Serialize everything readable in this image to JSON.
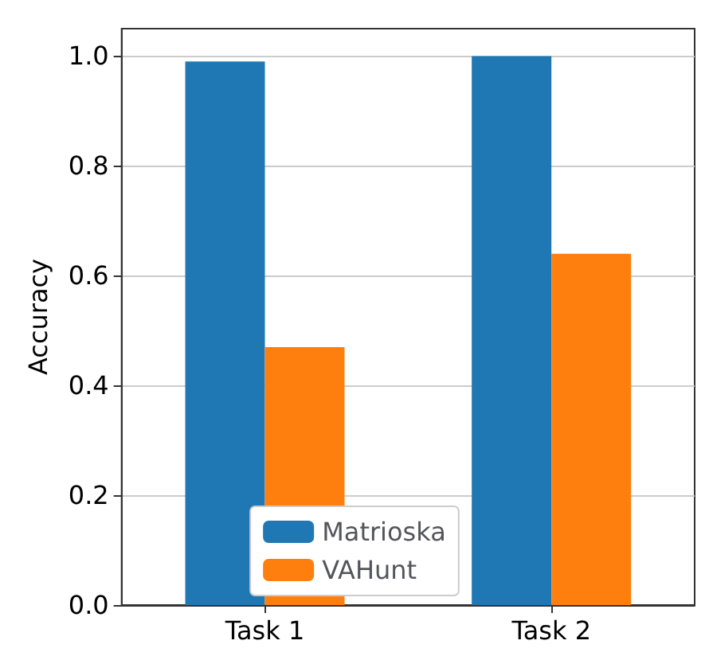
{
  "chart_data": {
    "type": "bar",
    "ylabel": "Accuracy",
    "categories": [
      "Task 1",
      "Task 2"
    ],
    "series": [
      {
        "name": "Matrioska",
        "color": "#1f77b4",
        "values": [
          0.99,
          1.0
        ]
      },
      {
        "name": "VAHunt",
        "color": "#ff7f0e",
        "values": [
          0.47,
          0.64
        ]
      }
    ],
    "ylim": [
      0,
      1.05
    ],
    "yticks": [
      {
        "value": 0,
        "label": "0.0"
      },
      0.2,
      0.4,
      0.6,
      0.8,
      {
        "value": 1,
        "label": "1.0"
      }
    ],
    "grid": "y",
    "legend": "bottom"
  }
}
